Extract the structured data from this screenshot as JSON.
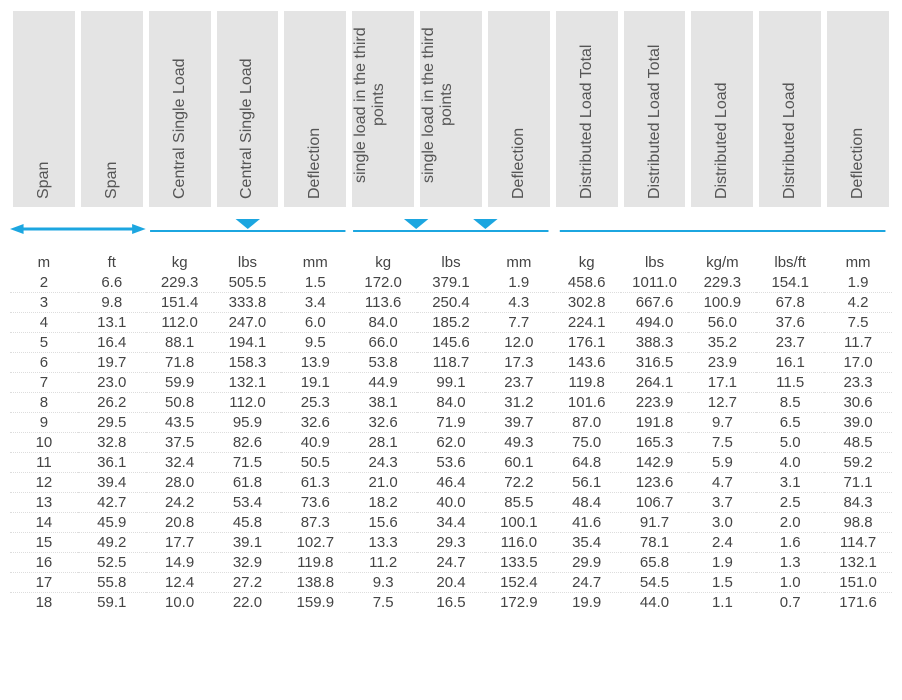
{
  "colors": {
    "accent": "#1ca6e0",
    "header_bg": "#e4e4e4",
    "text": "#555555",
    "dotted": "#dddddd"
  },
  "headers": [
    "Span",
    "Span",
    "Central Single Load",
    "Central Single Load",
    "Deflection",
    "single load in the\nthird points",
    "single load in the\nthird points",
    "Deflection",
    "Distributed Load Total",
    "Distributed Load Total",
    "Distributed Load",
    "Distributed Load",
    "Deflection"
  ],
  "units": [
    "m",
    "ft",
    "kg",
    "lbs",
    "mm",
    "kg",
    "lbs",
    "mm",
    "kg",
    "lbs",
    "kg/m",
    "lbs/ft",
    "mm"
  ],
  "rows": [
    [
      "2",
      "6.6",
      "229.3",
      "505.5",
      "1.5",
      "172.0",
      "379.1",
      "1.9",
      "458.6",
      "1011.0",
      "229.3",
      "154.1",
      "1.9"
    ],
    [
      "3",
      "9.8",
      "151.4",
      "333.8",
      "3.4",
      "113.6",
      "250.4",
      "4.3",
      "302.8",
      "667.6",
      "100.9",
      "67.8",
      "4.2"
    ],
    [
      "4",
      "13.1",
      "112.0",
      "247.0",
      "6.0",
      "84.0",
      "185.2",
      "7.7",
      "224.1",
      "494.0",
      "56.0",
      "37.6",
      "7.5"
    ],
    [
      "5",
      "16.4",
      "88.1",
      "194.1",
      "9.5",
      "66.0",
      "145.6",
      "12.0",
      "176.1",
      "388.3",
      "35.2",
      "23.7",
      "11.7"
    ],
    [
      "6",
      "19.7",
      "71.8",
      "158.3",
      "13.9",
      "53.8",
      "118.7",
      "17.3",
      "143.6",
      "316.5",
      "23.9",
      "16.1",
      "17.0"
    ],
    [
      "7",
      "23.0",
      "59.9",
      "132.1",
      "19.1",
      "44.9",
      "99.1",
      "23.7",
      "119.8",
      "264.1",
      "17.1",
      "11.5",
      "23.3"
    ],
    [
      "8",
      "26.2",
      "50.8",
      "112.0",
      "25.3",
      "38.1",
      "84.0",
      "31.2",
      "101.6",
      "223.9",
      "12.7",
      "8.5",
      "30.6"
    ],
    [
      "9",
      "29.5",
      "43.5",
      "95.9",
      "32.6",
      "32.6",
      "71.9",
      "39.7",
      "87.0",
      "191.8",
      "9.7",
      "6.5",
      "39.0"
    ],
    [
      "10",
      "32.8",
      "37.5",
      "82.6",
      "40.9",
      "28.1",
      "62.0",
      "49.3",
      "75.0",
      "165.3",
      "7.5",
      "5.0",
      "48.5"
    ],
    [
      "11",
      "36.1",
      "32.4",
      "71.5",
      "50.5",
      "24.3",
      "53.6",
      "60.1",
      "64.8",
      "142.9",
      "5.9",
      "4.0",
      "59.2"
    ],
    [
      "12",
      "39.4",
      "28.0",
      "61.8",
      "61.3",
      "21.0",
      "46.4",
      "72.2",
      "56.1",
      "123.6",
      "4.7",
      "3.1",
      "71.1"
    ],
    [
      "13",
      "42.7",
      "24.2",
      "53.4",
      "73.6",
      "18.2",
      "40.0",
      "85.5",
      "48.4",
      "106.7",
      "3.7",
      "2.5",
      "84.3"
    ],
    [
      "14",
      "45.9",
      "20.8",
      "45.8",
      "87.3",
      "15.6",
      "34.4",
      "100.1",
      "41.6",
      "91.7",
      "3.0",
      "2.0",
      "98.8"
    ],
    [
      "15",
      "49.2",
      "17.7",
      "39.1",
      "102.7",
      "13.3",
      "29.3",
      "116.0",
      "35.4",
      "78.1",
      "2.4",
      "1.6",
      "114.7"
    ],
    [
      "16",
      "52.5",
      "14.9",
      "32.9",
      "119.8",
      "11.2",
      "24.7",
      "133.5",
      "29.9",
      "65.8",
      "1.9",
      "1.3",
      "132.1"
    ],
    [
      "17",
      "55.8",
      "12.4",
      "27.2",
      "138.8",
      "9.3",
      "20.4",
      "152.4",
      "24.7",
      "54.5",
      "1.5",
      "1.0",
      "151.0"
    ],
    [
      "18",
      "59.1",
      "10.0",
      "22.0",
      "159.9",
      "7.5",
      "16.5",
      "172.9",
      "19.9",
      "44.0",
      "1.1",
      "0.7",
      "171.6"
    ]
  ]
}
